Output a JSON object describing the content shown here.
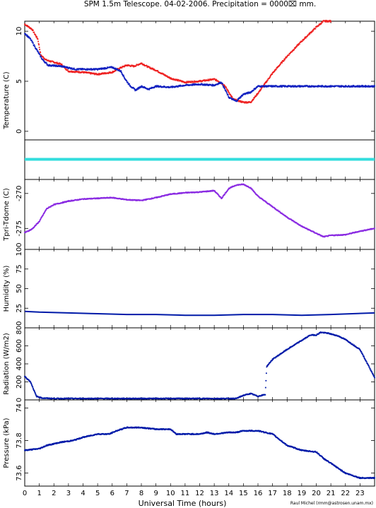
{
  "title": "SPM 1.5m Telescope. 04-02-2006. Precipitation = 0000⌧ mm.",
  "credit": "Raul Michel (rmm@astrosen.unam.mx)",
  "colors": {
    "red": "#ee2222",
    "blue": "#1020c0",
    "cyan": "#33dddd",
    "purple": "#8a2be2",
    "navy": "#001aa8"
  },
  "chart_data": [
    {
      "type": "scatter",
      "ylabel": "Temperature (C)",
      "ylim": [
        -1,
        11
      ],
      "yticks": [
        "0",
        "5",
        "10"
      ],
      "xlim": [
        0,
        24
      ],
      "series": [
        {
          "color": "red",
          "points": [
            [
              0,
              10.7
            ],
            [
              0.5,
              10.2
            ],
            [
              0.9,
              9.2
            ],
            [
              1.1,
              7.6
            ],
            [
              1.5,
              7.1
            ],
            [
              2.5,
              6.7
            ],
            [
              3,
              6.0
            ],
            [
              4,
              5.9
            ],
            [
              5,
              5.7
            ],
            [
              6,
              5.9
            ],
            [
              6.5,
              6.3
            ],
            [
              7,
              6.6
            ],
            [
              7.5,
              6.5
            ],
            [
              8,
              6.8
            ],
            [
              8.5,
              6.4
            ],
            [
              9,
              6.1
            ],
            [
              9.5,
              5.7
            ],
            [
              10,
              5.3
            ],
            [
              11,
              4.9
            ],
            [
              12,
              5.0
            ],
            [
              13,
              5.2
            ],
            [
              13.3,
              5.0
            ],
            [
              13.7,
              4.6
            ],
            [
              14,
              3.9
            ],
            [
              14.3,
              3.2
            ],
            [
              15,
              2.9
            ],
            [
              15.5,
              2.9
            ],
            [
              16,
              3.8
            ],
            [
              17,
              5.8
            ],
            [
              18,
              7.5
            ],
            [
              19,
              9.0
            ],
            [
              20,
              10.4
            ],
            [
              20.5,
              11.0
            ],
            [
              21,
              11.0
            ]
          ]
        },
        {
          "color": "blue",
          "points": [
            [
              0,
              9.8
            ],
            [
              0.4,
              9.2
            ],
            [
              0.8,
              8.2
            ],
            [
              1.2,
              7.2
            ],
            [
              1.6,
              6.6
            ],
            [
              2.5,
              6.5
            ],
            [
              3.5,
              6.2
            ],
            [
              5,
              6.2
            ],
            [
              6,
              6.4
            ],
            [
              6.6,
              6.0
            ],
            [
              6.9,
              5.2
            ],
            [
              7.2,
              4.6
            ],
            [
              7.6,
              4.1
            ],
            [
              8,
              4.5
            ],
            [
              8.5,
              4.2
            ],
            [
              9,
              4.5
            ],
            [
              10,
              4.4
            ],
            [
              11,
              4.6
            ],
            [
              12,
              4.7
            ],
            [
              13,
              4.6
            ],
            [
              13.5,
              4.9
            ],
            [
              14,
              3.4
            ],
            [
              14.5,
              3.0
            ],
            [
              15,
              3.7
            ],
            [
              15.5,
              3.9
            ],
            [
              16,
              4.5
            ],
            [
              16.5,
              4.5
            ],
            [
              24,
              4.5
            ]
          ]
        },
        {
          "color": "cyan",
          "points": [
            [
              0,
              -2.8
            ],
            [
              24,
              -2.8
            ]
          ]
        }
      ],
      "extra_xmax": 24
    },
    {
      "type": "scatter",
      "ylabel": "Tpri-Tdome (C)",
      "ylim": [
        -278,
        -268
      ],
      "yticks": [
        "-275",
        "-270"
      ],
      "xlim": [
        0,
        24
      ],
      "series": [
        {
          "color": "purple",
          "points": [
            [
              0,
              -275.6
            ],
            [
              0.5,
              -275.1
            ],
            [
              1,
              -274.0
            ],
            [
              1.5,
              -272.2
            ],
            [
              2,
              -271.6
            ],
            [
              3,
              -271.1
            ],
            [
              4,
              -270.8
            ],
            [
              5,
              -270.7
            ],
            [
              6,
              -270.6
            ],
            [
              7,
              -270.9
            ],
            [
              8,
              -271.0
            ],
            [
              9,
              -270.6
            ],
            [
              10,
              -270.1
            ],
            [
              11,
              -269.9
            ],
            [
              12,
              -269.8
            ],
            [
              13,
              -269.6
            ],
            [
              13.5,
              -270.7
            ],
            [
              14,
              -269.3
            ],
            [
              14.5,
              -268.8
            ],
            [
              15,
              -268.7
            ],
            [
              15.5,
              -269.2
            ],
            [
              16,
              -270.4
            ],
            [
              17,
              -271.9
            ],
            [
              18,
              -273.4
            ],
            [
              19,
              -274.7
            ],
            [
              20,
              -275.7
            ],
            [
              20.5,
              -276.2
            ],
            [
              21,
              -276.0
            ],
            [
              22,
              -275.9
            ],
            [
              23,
              -275.4
            ],
            [
              24,
              -275.0
            ]
          ]
        }
      ]
    },
    {
      "type": "line",
      "ylabel": "Humidity (%)",
      "ylim": [
        0,
        100
      ],
      "yticks": [
        "25",
        "50",
        "75",
        "100"
      ],
      "xlim": [
        0,
        24
      ],
      "series": [
        {
          "color": "navy",
          "points": [
            [
              0,
              21
            ],
            [
              1,
              20
            ],
            [
              3,
              19
            ],
            [
              5,
              18
            ],
            [
              7,
              17
            ],
            [
              9,
              17
            ],
            [
              11,
              16
            ],
            [
              13,
              16
            ],
            [
              15,
              17
            ],
            [
              17,
              17
            ],
            [
              19,
              16
            ],
            [
              21,
              17
            ],
            [
              24,
              19
            ]
          ]
        }
      ]
    },
    {
      "type": "scatter",
      "ylabel": "Radiation (W/m2)",
      "ylim": [
        0,
        800
      ],
      "yticks": [
        "0",
        "200",
        "400",
        "600",
        "800"
      ],
      "xlim": [
        0,
        24
      ],
      "series": [
        {
          "color": "navy",
          "points": [
            [
              0,
              260
            ],
            [
              0.4,
              200
            ],
            [
              0.8,
              40
            ],
            [
              1.2,
              20
            ],
            [
              2,
              15
            ],
            [
              5,
              15
            ],
            [
              10,
              15
            ],
            [
              14.5,
              15
            ],
            [
              15,
              50
            ],
            [
              15.5,
              70
            ],
            [
              16,
              40
            ],
            [
              16.5,
              60
            ],
            [
              16.6,
              370
            ],
            [
              17,
              450
            ],
            [
              18,
              560
            ],
            [
              19,
              660
            ],
            [
              19.6,
              720
            ],
            [
              20,
              720
            ],
            [
              20.3,
              750
            ],
            [
              20.8,
              740
            ],
            [
              21.5,
              710
            ],
            [
              22,
              670
            ],
            [
              23,
              560
            ],
            [
              24,
              250
            ]
          ]
        }
      ]
    },
    {
      "type": "scatter",
      "ylabel": "Pressure (kPa)",
      "ylim": [
        73.52,
        74.05
      ],
      "yticks": [
        "73.6",
        "73.8",
        "74"
      ],
      "xlim": [
        0,
        24
      ],
      "xlabel": "Universal Time (hours)",
      "xticks": [
        "0",
        "1",
        "2",
        "3",
        "4",
        "5",
        "6",
        "7",
        "8",
        "9",
        "10",
        "11",
        "12",
        "13",
        "14",
        "15",
        "16",
        "17",
        "18",
        "19",
        "20",
        "21",
        "22",
        "23"
      ],
      "series": [
        {
          "color": "navy",
          "points": [
            [
              0,
              73.74
            ],
            [
              1,
              73.75
            ],
            [
              1.5,
              73.77
            ],
            [
              2.5,
              73.79
            ],
            [
              3.3,
              73.8
            ],
            [
              4,
              73.82
            ],
            [
              5,
              73.84
            ],
            [
              5.8,
              73.84
            ],
            [
              6.3,
              73.86
            ],
            [
              7,
              73.88
            ],
            [
              8,
              73.88
            ],
            [
              9,
              73.87
            ],
            [
              10,
              73.87
            ],
            [
              10.4,
              73.84
            ],
            [
              11,
              73.84
            ],
            [
              12,
              73.84
            ],
            [
              12.5,
              73.85
            ],
            [
              13,
              73.84
            ],
            [
              14,
              73.85
            ],
            [
              14.5,
              73.85
            ],
            [
              15,
              73.86
            ],
            [
              16,
              73.86
            ],
            [
              17,
              73.84
            ],
            [
              18,
              73.77
            ],
            [
              19,
              73.74
            ],
            [
              20,
              73.73
            ],
            [
              20.5,
              73.69
            ],
            [
              21,
              73.66
            ],
            [
              22,
              73.6
            ],
            [
              23,
              73.57
            ],
            [
              24,
              73.57
            ]
          ]
        }
      ]
    }
  ]
}
